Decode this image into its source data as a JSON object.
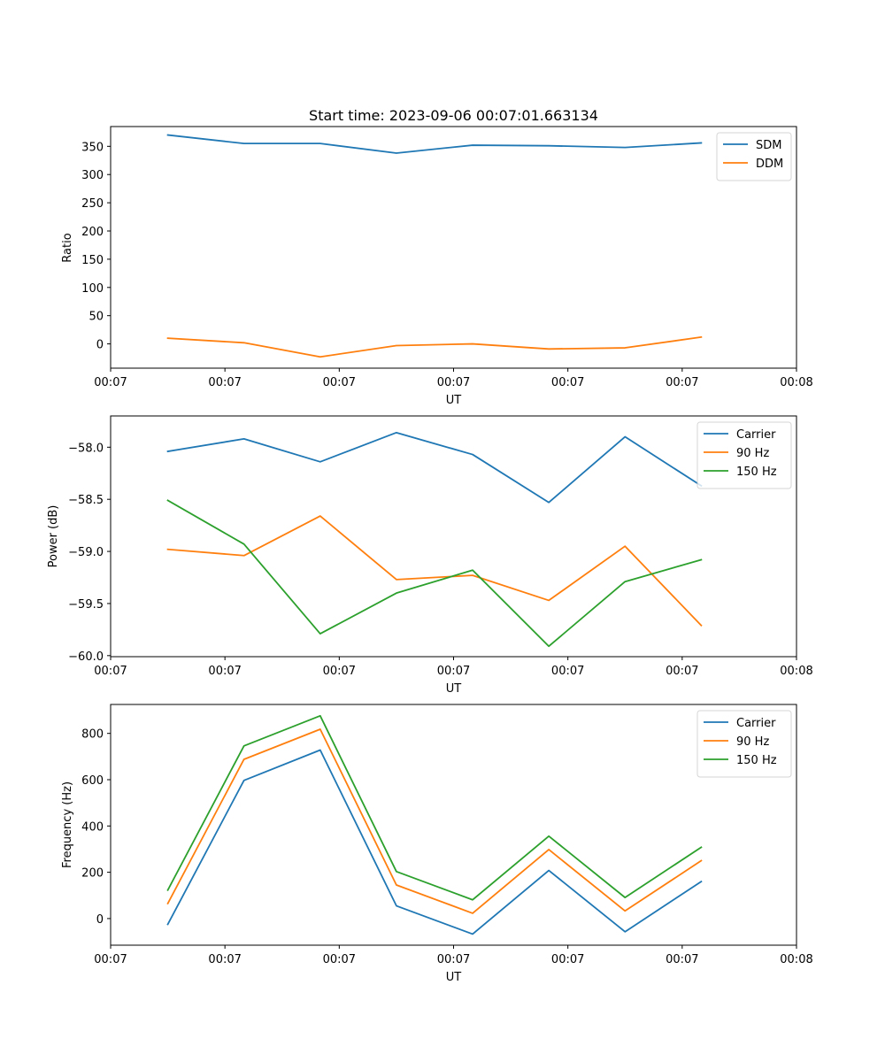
{
  "title": "Start time: 2023-09-06 00:07:01.663134",
  "colors": {
    "blue": "#1f77b4",
    "orange": "#ff7f0e",
    "green": "#2ca02c"
  },
  "chart_data": [
    {
      "type": "line",
      "title": "Start time: 2023-09-06 00:07:01.663134",
      "xlabel": "UT",
      "ylabel": "Ratio",
      "legend_position": "top-right",
      "x": [
        1,
        2,
        3,
        4,
        5,
        6,
        7,
        8
      ],
      "xlim": [
        0.25,
        9.25
      ],
      "x_ticks": [
        0.25,
        1.75,
        3.25,
        4.75,
        6.25,
        7.75,
        9.25
      ],
      "x_tick_labels": [
        "00:07",
        "00:07",
        "00:07",
        "00:07",
        "00:07",
        "00:07",
        "00:08"
      ],
      "ylim": [
        -43,
        385
      ],
      "y_ticks": [
        0,
        50,
        100,
        150,
        200,
        250,
        300,
        350
      ],
      "y_tick_labels": [
        "0",
        "50",
        "100",
        "150",
        "200",
        "250",
        "300",
        "350"
      ],
      "series": [
        {
          "name": "SDM",
          "color": "#1f77b4",
          "values": [
            370,
            355,
            355,
            338,
            352,
            351,
            348,
            356
          ]
        },
        {
          "name": "DDM",
          "color": "#ff7f0e",
          "values": [
            10,
            2,
            -23,
            -3,
            0,
            -9,
            -7,
            12
          ]
        }
      ]
    },
    {
      "type": "line",
      "xlabel": "UT",
      "ylabel": "Power (dB)",
      "legend_position": "top-right",
      "x": [
        1,
        2,
        3,
        4,
        5,
        6,
        7,
        8
      ],
      "xlim": [
        0.25,
        9.25
      ],
      "x_ticks": [
        0.25,
        1.75,
        3.25,
        4.75,
        6.25,
        7.75,
        9.25
      ],
      "x_tick_labels": [
        "00:07",
        "00:07",
        "00:07",
        "00:07",
        "00:07",
        "00:07",
        "00:08"
      ],
      "ylim": [
        -60.01,
        -57.7
      ],
      "y_ticks": [
        -58.0,
        -58.5,
        -59.0,
        -59.5,
        -60.0
      ],
      "y_tick_labels": [
        "−58.0",
        "−58.5",
        "−59.0",
        "−59.5",
        "−60.0"
      ],
      "series": [
        {
          "name": "Carrier",
          "color": "#1f77b4",
          "values": [
            -58.04,
            -57.92,
            -58.14,
            -57.86,
            -58.07,
            -58.53,
            -57.9,
            -58.37
          ]
        },
        {
          "name": "90 Hz",
          "color": "#ff7f0e",
          "values": [
            -58.98,
            -59.04,
            -58.66,
            -59.27,
            -59.23,
            -59.47,
            -58.95,
            -59.71
          ]
        },
        {
          "name": "150 Hz",
          "color": "#2ca02c",
          "values": [
            -58.51,
            -58.93,
            -59.79,
            -59.4,
            -59.18,
            -59.91,
            -59.29,
            -59.08
          ]
        }
      ]
    },
    {
      "type": "line",
      "xlabel": "UT",
      "ylabel": "Frequency (Hz)",
      "legend_position": "top-right",
      "x": [
        1,
        2,
        3,
        4,
        5,
        6,
        7,
        8
      ],
      "xlim": [
        0.25,
        9.25
      ],
      "x_ticks": [
        0.25,
        1.75,
        3.25,
        4.75,
        6.25,
        7.75,
        9.25
      ],
      "x_tick_labels": [
        "00:07",
        "00:07",
        "00:07",
        "00:07",
        "00:07",
        "00:07",
        "00:08"
      ],
      "ylim": [
        -115,
        925
      ],
      "y_ticks": [
        0,
        200,
        400,
        600,
        800
      ],
      "y_tick_labels": [
        "0",
        "200",
        "400",
        "600",
        "800"
      ],
      "series": [
        {
          "name": "Carrier",
          "color": "#1f77b4",
          "values": [
            -25,
            597,
            728,
            55,
            -67,
            208,
            -57,
            160
          ]
        },
        {
          "name": "90 Hz",
          "color": "#ff7f0e",
          "values": [
            65,
            688,
            818,
            145,
            23,
            298,
            33,
            250
          ]
        },
        {
          "name": "150 Hz",
          "color": "#2ca02c",
          "values": [
            123,
            746,
            876,
            203,
            81,
            356,
            91,
            308
          ]
        }
      ]
    }
  ]
}
